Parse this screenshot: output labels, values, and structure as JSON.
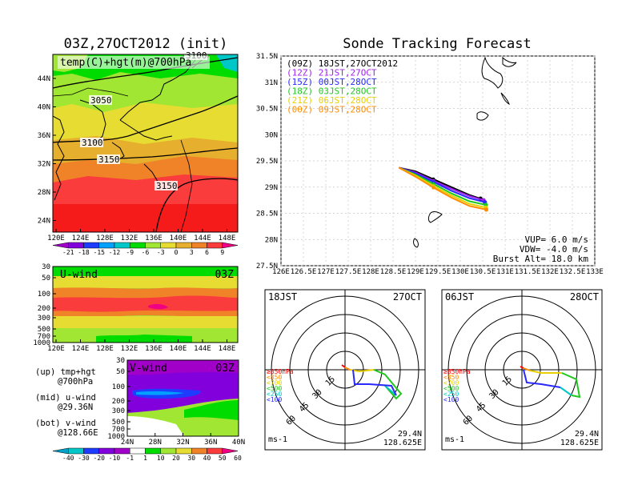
{
  "left_panel": {
    "title": "03Z,27OCT2012 (init)",
    "map_label": "temp(C)+hgt(m)@700hPa",
    "contour_labels": [
      "3050",
      "3100",
      "3150",
      "3150",
      "3100"
    ],
    "lat_ticks": [
      "44N",
      "40N",
      "36N",
      "32N",
      "28N",
      "24N"
    ],
    "lon_ticks": [
      "120E",
      "124E",
      "128E",
      "132E",
      "136E",
      "140E",
      "144E",
      "148E"
    ],
    "temp_colorbar": [
      "-21",
      "-18",
      "-15",
      "-12",
      "-9",
      "-6",
      "-3",
      "0",
      "3",
      "6",
      "9"
    ]
  },
  "u_panel": {
    "label": "U-wind",
    "time": "03Z",
    "p_ticks": [
      "30",
      "50",
      "100",
      "200",
      "300",
      "500",
      "700",
      "1000"
    ],
    "lon_ticks": [
      "120E",
      "124E",
      "128E",
      "132E",
      "136E",
      "140E",
      "144E",
      "148E"
    ]
  },
  "v_panel": {
    "label": "V-wind",
    "time": "03Z",
    "p_ticks": [
      "30",
      "50",
      "100",
      "200",
      "300",
      "500",
      "700",
      "1000"
    ],
    "lat_ticks": [
      "24N",
      "28N",
      "32N",
      "36N",
      "40N"
    ]
  },
  "side_legend": [
    {
      "a": "(up) tmp+hgt",
      "b": "@700hPa"
    },
    {
      "a": "(mid) u-wind",
      "b": "@29.36N"
    },
    {
      "a": "(bot) v-wind",
      "b": "@128.66E"
    }
  ],
  "wind_colorbar": [
    "-40",
    "-30",
    "-20",
    "-10",
    "-1",
    "1",
    "10",
    "20",
    "30",
    "40",
    "50",
    "60"
  ],
  "forecast": {
    "title": "Sonde Tracking Forecast",
    "lat_ticks": [
      "31.5N",
      "31N",
      "30.5N",
      "30N",
      "29.5N",
      "29N",
      "28.5N",
      "28N",
      "27.5N"
    ],
    "lon_ticks": [
      "126E",
      "126.5E",
      "127E",
      "127.5E",
      "128E",
      "128.5E",
      "129E",
      "129.5E",
      "130E",
      "130.5E",
      "131E",
      "131.5E",
      "132E",
      "132.5E",
      "133E"
    ],
    "legend": [
      {
        "label": "(09Z) 18JST,27OCT2012",
        "color": "#000000"
      },
      {
        "label": "(12Z) 21JST,27OCT",
        "color": "#a020f0"
      },
      {
        "label": "(15Z) 00JST,28OCT",
        "color": "#2828ff"
      },
      {
        "label": "(18Z) 03JST,28OCT",
        "color": "#1ec81e"
      },
      {
        "label": "(21Z) 06JST,28OCT",
        "color": "#e8d000"
      },
      {
        "label": "(00Z) 09JST,28OCT",
        "color": "#ff8c00"
      }
    ],
    "params": [
      "VUP= 6.0 m/s",
      "VDW= -4.0 m/s",
      "Burst Alt= 18.0 km"
    ]
  },
  "chart_data": {
    "type": "line",
    "title": "Sonde Tracking Forecast",
    "xlim": [
      126,
      133
    ],
    "ylim": [
      27.5,
      31.5
    ],
    "xlabel": "",
    "ylabel": "",
    "grid": true,
    "legend_position": "top-left",
    "series": [
      {
        "name": "(09Z) 18JST,27OCT2012",
        "color": "#000000",
        "points": [
          [
            128.63,
            29.37
          ],
          [
            129.0,
            29.3
          ],
          [
            129.4,
            29.15
          ],
          [
            129.8,
            29.0
          ],
          [
            130.2,
            28.85
          ],
          [
            130.45,
            28.78
          ]
        ]
      },
      {
        "name": "(12Z) 21JST,27OCT",
        "color": "#a020f0",
        "points": [
          [
            128.63,
            29.37
          ],
          [
            129.0,
            29.28
          ],
          [
            129.4,
            29.12
          ],
          [
            129.8,
            28.97
          ],
          [
            130.2,
            28.83
          ],
          [
            130.52,
            28.75
          ]
        ]
      },
      {
        "name": "(15Z) 00JST,28OCT",
        "color": "#2828ff",
        "points": [
          [
            128.63,
            29.37
          ],
          [
            129.0,
            29.26
          ],
          [
            129.4,
            29.1
          ],
          [
            129.8,
            28.93
          ],
          [
            130.2,
            28.79
          ],
          [
            130.55,
            28.71
          ]
        ]
      },
      {
        "name": "(18Z) 03JST,28OCT",
        "color": "#1ec81e",
        "points": [
          [
            128.63,
            29.37
          ],
          [
            129.0,
            29.24
          ],
          [
            129.4,
            29.06
          ],
          [
            129.8,
            28.88
          ],
          [
            130.2,
            28.73
          ],
          [
            130.57,
            28.66
          ]
        ]
      },
      {
        "name": "(21Z) 06JST,28OCT",
        "color": "#e8d000",
        "points": [
          [
            128.63,
            29.37
          ],
          [
            129.0,
            29.22
          ],
          [
            129.4,
            29.02
          ],
          [
            129.8,
            28.84
          ],
          [
            130.2,
            28.68
          ],
          [
            130.57,
            28.61
          ]
        ]
      },
      {
        "name": "(00Z) 09JST,28OCT",
        "color": "#ff8c00",
        "points": [
          [
            128.63,
            29.37
          ],
          [
            129.0,
            29.2
          ],
          [
            129.4,
            28.99
          ],
          [
            129.8,
            28.8
          ],
          [
            130.2,
            28.64
          ],
          [
            130.58,
            28.57
          ]
        ]
      }
    ]
  },
  "polar_panels": [
    {
      "time": "18JST",
      "date": "27OCT",
      "lat": "29.4N",
      "lon": "128.625E",
      "unit": "ms-1"
    },
    {
      "time": "06JST",
      "date": "28OCT",
      "lat": "29.4N",
      "lon": "128.625E",
      "unit": "ms-1"
    }
  ],
  "polar_rings": [
    "15",
    "30",
    "45",
    "60"
  ],
  "polar_levels": [
    {
      "label": "≥850hPa",
      "color": "#ff0000"
    },
    {
      "label": "<850",
      "color": "#ff8c00"
    },
    {
      "label": "<700",
      "color": "#e8d000"
    },
    {
      "label": "<500",
      "color": "#1ec81e"
    },
    {
      "label": "<250",
      "color": "#00c8c8"
    },
    {
      "label": "<100",
      "color": "#2828ff"
    }
  ],
  "colors": {
    "temp_scale": [
      "#a000c8",
      "#8200dc",
      "#1e3cff",
      "#00a0ff",
      "#00c8c8",
      "#00dc00",
      "#a0e632",
      "#e6dc32",
      "#e6af2d",
      "#f08228",
      "#fa3c3c",
      "#f00082"
    ],
    "wind_scale": [
      "#00a0c8",
      "#00c8c8",
      "#1e3cff",
      "#8200dc",
      "#a000c8",
      "#ffffff",
      "#00dc00",
      "#a0e632",
      "#e6dc32",
      "#f08228",
      "#fa3c3c",
      "#f00082"
    ]
  }
}
